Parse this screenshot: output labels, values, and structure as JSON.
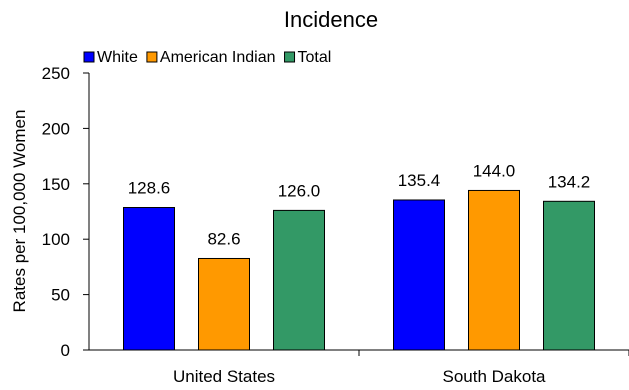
{
  "chart_data": {
    "type": "bar",
    "title": "Incidence",
    "xlabel": "",
    "ylabel": "Rates per 100,000 Women",
    "ylim": [
      0,
      250
    ],
    "yticks": [
      0,
      50,
      100,
      150,
      200,
      250
    ],
    "grid": false,
    "legend_position": "top-left",
    "categories": [
      "United States",
      "South Dakota"
    ],
    "series": [
      {
        "name": "White",
        "color": "#0000FF",
        "values": [
          128.6,
          135.4
        ],
        "labels": [
          "128.6",
          "135.4"
        ]
      },
      {
        "name": "American Indian",
        "color": "#FF9900",
        "values": [
          82.6,
          144.0
        ],
        "labels": [
          "82.6",
          "144.0"
        ]
      },
      {
        "name": "Total",
        "color": "#339966",
        "values": [
          126.0,
          134.2
        ],
        "labels": [
          "126.0",
          "134.2"
        ]
      }
    ]
  }
}
